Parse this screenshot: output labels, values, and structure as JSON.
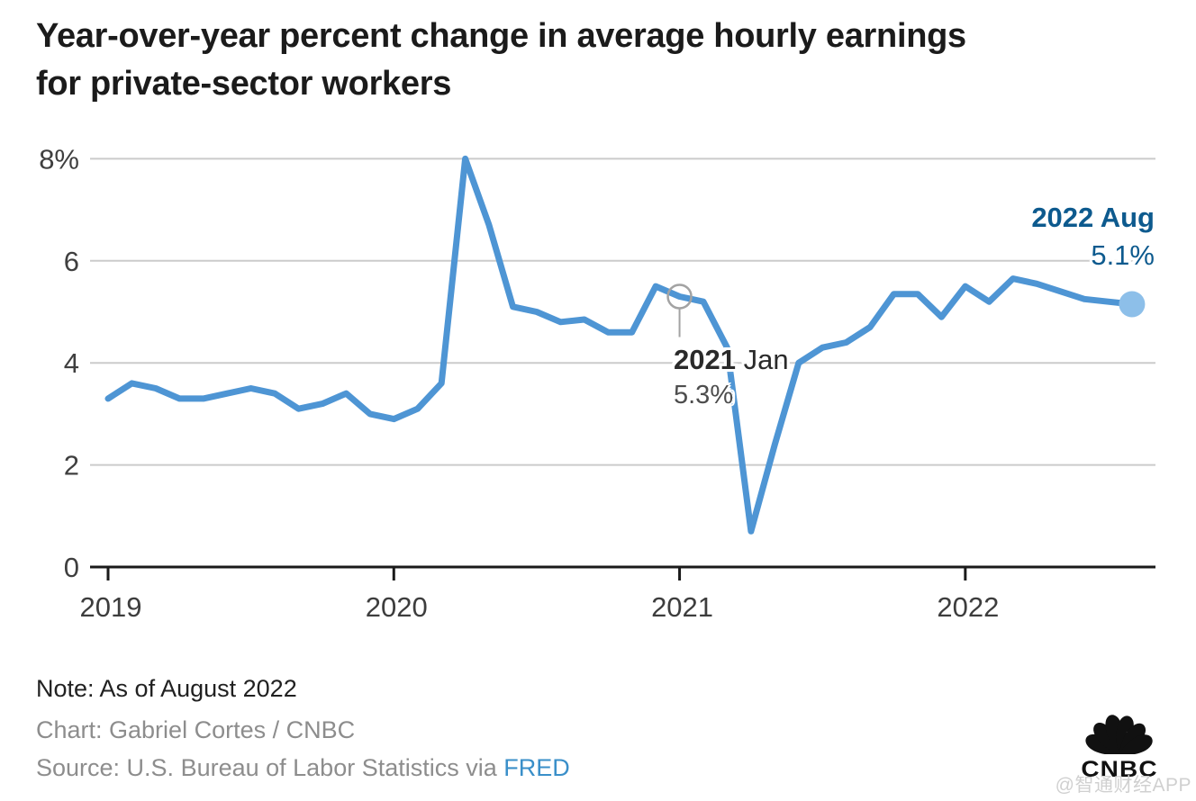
{
  "header": {
    "title_line1": "Year-over-year percent change in average hourly earnings",
    "title_line2": "for private-sector workers"
  },
  "chart_data": {
    "type": "line",
    "title": "Year-over-year percent change in average hourly earnings for private-sector workers",
    "xlabel": "",
    "ylabel": "",
    "grid": true,
    "ylim": [
      0,
      8.5
    ],
    "y_ticks": [
      0,
      2,
      4,
      6,
      8
    ],
    "y_tick_labels": [
      "0",
      "2",
      "4",
      "6",
      "8%"
    ],
    "x_tick_labels": [
      "2019",
      "2020",
      "2021",
      "2022"
    ],
    "x_range": {
      "start": "2019 Jan",
      "end": "2022 Aug",
      "frequency": "monthly"
    },
    "series": [
      {
        "name": "YoY % change in average hourly earnings",
        "values": [
          3.3,
          3.6,
          3.5,
          3.3,
          3.3,
          3.4,
          3.5,
          3.4,
          3.1,
          3.2,
          3.4,
          3.0,
          2.9,
          3.1,
          3.6,
          8.0,
          6.7,
          5.1,
          5.0,
          4.8,
          4.85,
          4.6,
          4.6,
          5.5,
          5.3,
          5.2,
          4.3,
          0.7,
          2.4,
          4.0,
          4.3,
          4.4,
          4.7,
          5.35,
          5.35,
          4.9,
          5.5,
          5.2,
          5.65,
          5.55,
          5.4,
          5.25,
          5.2,
          5.15
        ]
      }
    ],
    "line_color": "#4e95d4",
    "end_marker_color": "#8dbfe9",
    "annotation_blue": "#0d5a8e",
    "annotations": [
      {
        "year_bold": "2021",
        "month": "Jan",
        "value_label": "5.3%",
        "point_index": 24,
        "marker": "open-circle"
      },
      {
        "label": "2022 Aug",
        "value_label": "5.1%",
        "point_index": 43,
        "marker": "filled-circle"
      }
    ]
  },
  "footer": {
    "note": "Note: As of August 2022",
    "credit": "Chart: Gabriel Cortes / CNBC",
    "source_prefix": "Source: U.S. Bureau of Labor Statistics via ",
    "source_link": "FRED",
    "link_color": "#3a8fc9"
  },
  "branding": {
    "logo_text": "CNBC",
    "watermark": "@智通财经APP"
  }
}
